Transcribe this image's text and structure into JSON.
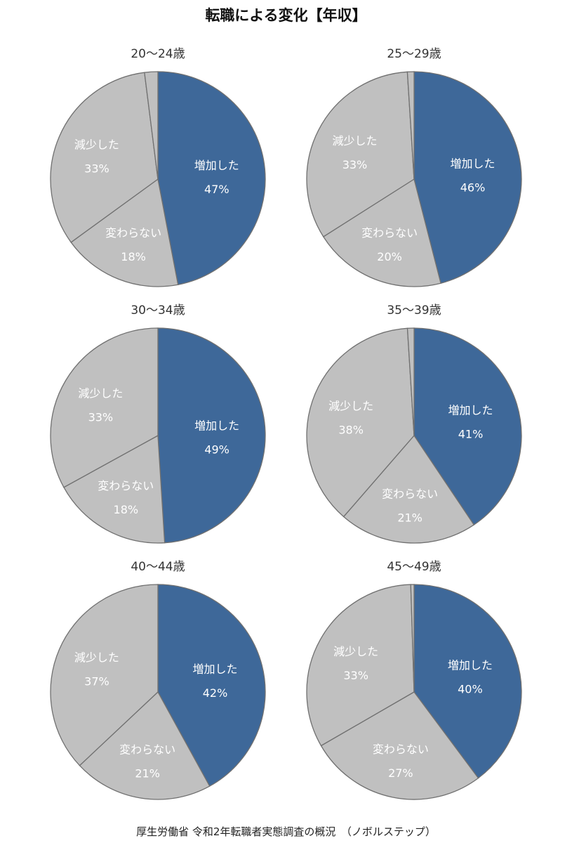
{
  "title": "転職による変化【年収】",
  "source": "厚生労働省 令和2年転職者実態調査の概況　（ノボルステップ）",
  "colors": {
    "increase": "#3e6899",
    "others": "#c0c0c0",
    "edge": "#707070"
  },
  "chart_data": [
    {
      "type": "pie",
      "title": "20〜24歳",
      "start_category": "増加した",
      "direction": "clockwise",
      "categories": [
        "増加した",
        "変わらない",
        "減少した",
        ""
      ],
      "values": [
        47,
        18,
        33,
        2
      ],
      "data_labels": [
        "47%",
        "18%",
        "33%",
        ""
      ]
    },
    {
      "type": "pie",
      "title": "25〜29歳",
      "start_category": "増加した",
      "direction": "clockwise",
      "categories": [
        "増加した",
        "変わらない",
        "減少した",
        ""
      ],
      "values": [
        46,
        20,
        33,
        1
      ],
      "data_labels": [
        "46%",
        "20%",
        "33%",
        ""
      ]
    },
    {
      "type": "pie",
      "title": "30〜34歳",
      "start_category": "増加した",
      "direction": "clockwise",
      "categories": [
        "増加した",
        "変わらない",
        "減少した",
        ""
      ],
      "values": [
        49,
        18,
        33,
        0
      ],
      "data_labels": [
        "49%",
        "18%",
        "33%",
        ""
      ]
    },
    {
      "type": "pie",
      "title": "35〜39歳",
      "start_category": "増加した",
      "direction": "clockwise",
      "categories": [
        "増加した",
        "変わらない",
        "減少した",
        ""
      ],
      "values": [
        41,
        21,
        38,
        1
      ],
      "data_labels": [
        "41%",
        "21%",
        "38%",
        ""
      ]
    },
    {
      "type": "pie",
      "title": "40〜44歳",
      "start_category": "増加した",
      "direction": "clockwise",
      "categories": [
        "増加した",
        "変わらない",
        "減少した",
        ""
      ],
      "values": [
        42,
        21,
        37,
        0
      ],
      "data_labels": [
        "42%",
        "21%",
        "37%",
        ""
      ]
    },
    {
      "type": "pie",
      "title": "45〜49歳",
      "start_category": "増加した",
      "direction": "clockwise",
      "categories": [
        "増加した",
        "変わらない",
        "減少した",
        ""
      ],
      "values": [
        40,
        27,
        33,
        0.5
      ],
      "data_labels": [
        "40%",
        "27%",
        "33%",
        ""
      ]
    }
  ]
}
